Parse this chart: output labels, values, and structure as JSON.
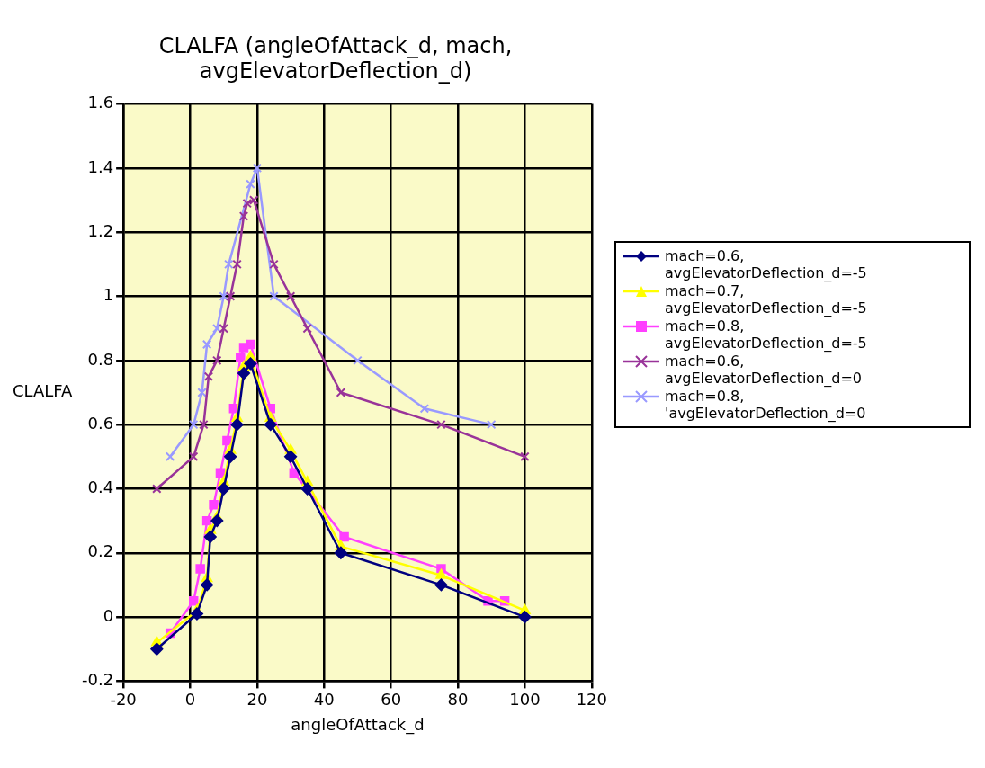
{
  "chart_data": {
    "type": "line",
    "title": "CLALFA (angleOfAttack_d, mach, avgElevatorDeflection_d)",
    "xlabel": "angleOfAttack_d",
    "ylabel": "CLALFA",
    "xlim": [
      -20,
      120
    ],
    "xticks": [
      -20,
      0,
      20,
      40,
      60,
      80,
      100,
      120
    ],
    "ylim": [
      -0.2,
      1.6
    ],
    "yticks": [
      -0.2,
      0,
      0.2,
      0.4,
      0.6,
      0.8,
      1,
      1.2,
      1.4,
      1.6
    ],
    "grid": true,
    "legend": "right",
    "series": [
      {
        "name": "mach=0.6, avgElevatorDeflection_d=-5",
        "color": "#000080",
        "marker": "diamond",
        "x": [
          -10,
          2,
          5,
          6,
          8,
          10,
          12,
          14,
          16,
          18,
          24,
          30,
          35,
          45,
          75,
          100
        ],
        "values": [
          -0.1,
          0.01,
          0.1,
          0.25,
          0.3,
          0.4,
          0.5,
          0.6,
          0.76,
          0.79,
          0.6,
          0.5,
          0.4,
          0.2,
          0.1,
          0
        ]
      },
      {
        "name": "mach=0.7, avgElevatorDeflection_d=-5",
        "color": "#ffff00",
        "marker": "triangle",
        "x": [
          -10,
          2,
          5,
          6,
          8,
          10,
          12,
          14,
          16,
          18,
          24,
          30,
          35,
          45,
          75,
          100
        ],
        "values": [
          -0.08,
          0.02,
          0.12,
          0.27,
          0.31,
          0.42,
          0.52,
          0.62,
          0.78,
          0.81,
          0.62,
          0.52,
          0.42,
          0.22,
          0.13,
          0.02
        ]
      },
      {
        "name": "mach=0.8, avgElevatorDeflection_d=-5",
        "color": "#ff40ff",
        "marker": "square",
        "x": [
          -6,
          1,
          3,
          5,
          7,
          9,
          11,
          13,
          15,
          16,
          18,
          24,
          31,
          46,
          75,
          89,
          94
        ],
        "values": [
          -0.05,
          0.05,
          0.15,
          0.3,
          0.35,
          0.45,
          0.55,
          0.65,
          0.81,
          0.84,
          0.85,
          0.65,
          0.45,
          0.25,
          0.15,
          0.05,
          0.05
        ]
      },
      {
        "name": "mach=0.6, avgElevatorDeflection_d=0",
        "color": "#993399",
        "marker": "cross",
        "x": [
          -10,
          1,
          4,
          5.5,
          8,
          10,
          12,
          14,
          16,
          17,
          19,
          25,
          30,
          35,
          45,
          75,
          100
        ],
        "values": [
          0.4,
          0.5,
          0.6,
          0.75,
          0.8,
          0.9,
          1,
          1.1,
          1.25,
          1.29,
          1.3,
          1.1,
          1,
          0.9,
          0.7,
          0.6,
          0.5
        ]
      },
      {
        "name": "mach=0.8, 'avgElevatorDeflection_d=0",
        "color": "#9999ff",
        "marker": "cross",
        "x": [
          -6,
          1,
          3.5,
          5,
          8,
          10,
          11.5,
          18,
          20,
          25,
          50,
          70,
          90
        ],
        "values": [
          0.5,
          0.6,
          0.7,
          0.85,
          0.9,
          1,
          1.1,
          1.35,
          1.4,
          1,
          0.8,
          0.65,
          0.6
        ]
      }
    ]
  }
}
